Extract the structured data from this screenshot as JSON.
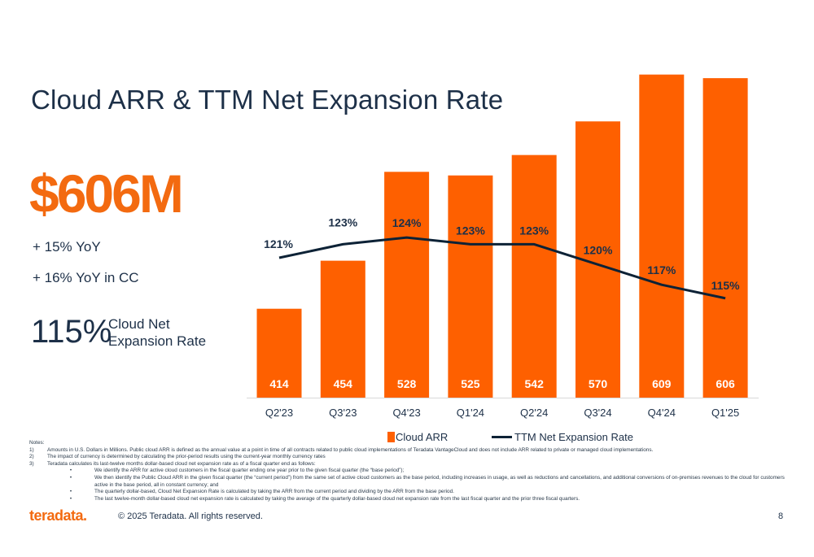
{
  "slide": {
    "title": "Cloud ARR & TTM Net Expansion Rate",
    "headline_value": "$606M",
    "yoy": "+ 15% YoY",
    "yoy_cc": "+ 16% YoY in CC",
    "ner_value": "115%",
    "ner_label_line1": "Cloud Net",
    "ner_label_line2": "Expansion Rate",
    "notes": {
      "heading": "Notes:",
      "items": [
        {
          "num": "1)",
          "text": "Amounts in U.S. Dollars in Millions. Public cloud ARR is defined as the annual value at a point in time of all contracts related to public cloud implementations of Teradata VantageCloud and does not include ARR related to private or managed cloud implementations."
        },
        {
          "num": "2)",
          "text": "The impact of currency is determined by calculating the prior-period results using the current-year monthly currency rates"
        },
        {
          "num": "3)",
          "text": "Teradata calculates its last-twelve months dollar-based cloud net expansion rate as of a fiscal quarter end as follows:"
        }
      ],
      "bullets": [
        "We identify the ARR for active cloud customers in the fiscal quarter ending one year prior to the given fiscal quarter (the “base period”);",
        "We then identify the Public Cloud ARR in the given fiscal quarter (the “current period”) from the same set of active cloud customers as the base period, including increases in usage, as well as reductions and cancellations, and additional conversions of on-premises revenues to the cloud for customers active in the base period, all in constant currency; and",
        "The quarterly dollar-based, Cloud Net Expansion Rate is calculated by taking the ARR from the current period and dividing by the ARR from the base period.",
        "The last twelve-month dollar-based cloud net expansion rate is calculated by taking the average of the quarterly dollar-based cloud net expansion rate from the last fiscal quarter and the prior three fiscal quarters."
      ]
    },
    "logo_text": "teradata.",
    "copyright": "© 2025 Teradata. All rights reserved.",
    "page_number": "8"
  },
  "colors": {
    "bar": "#fe6000",
    "line": "#0d2236",
    "title": "#1d3048",
    "accent": "#f36a10"
  },
  "chart_data": {
    "type": "bar",
    "categories": [
      "Q2'23",
      "Q3'23",
      "Q4'23",
      "Q1'24",
      "Q2'24",
      "Q3'24",
      "Q4'24",
      "Q1'25"
    ],
    "series": [
      {
        "name": "Cloud ARR",
        "type": "bar",
        "values": [
          414,
          454,
          528,
          525,
          542,
          570,
          609,
          606
        ],
        "labels": [
          "414",
          "454",
          "528",
          "525",
          "542",
          "570",
          "609",
          "606"
        ]
      },
      {
        "name": "TTM Net Expansion Rate",
        "type": "line",
        "values": [
          121,
          123,
          124,
          123,
          123,
          120,
          117,
          115
        ],
        "labels": [
          "121%",
          "123%",
          "124%",
          "123%",
          "123%",
          "120%",
          "117%",
          "115%"
        ]
      }
    ],
    "legend": "bottom-center",
    "grid": false
  }
}
